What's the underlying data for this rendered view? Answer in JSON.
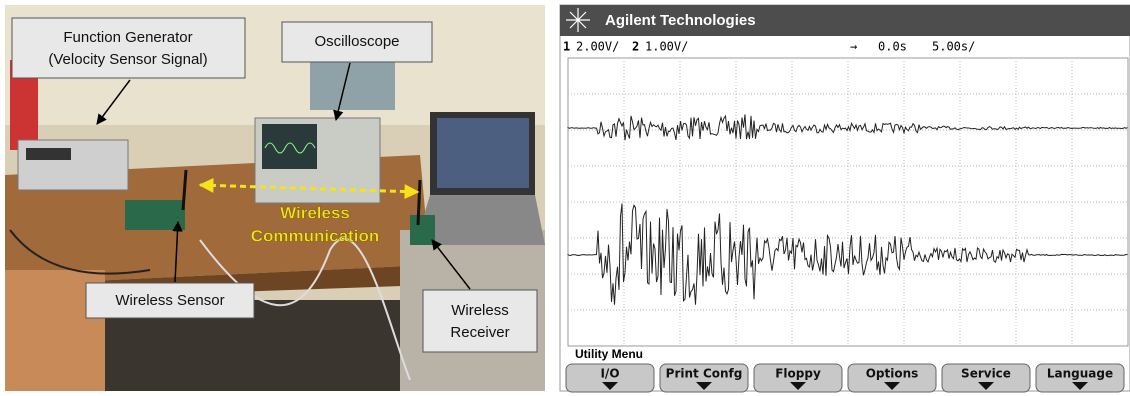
{
  "photo": {
    "labels": [
      {
        "lines": [
          "Function Generator",
          "(Velocity Sensor Signal)"
        ]
      },
      {
        "lines": [
          "Oscilloscope"
        ]
      },
      {
        "lines": [
          "Wireless Sensor"
        ]
      },
      {
        "lines": [
          "Wireless",
          "Receiver"
        ]
      }
    ],
    "link_label": [
      "Wireless",
      "Communication"
    ]
  },
  "scope": {
    "brand": "Agilent Technologies",
    "status": {
      "ch1": "1",
      "ch1_scale": "2.00V/",
      "ch2": "2",
      "ch2_scale": "1.00V/",
      "delay_arrow": "→",
      "delay": "0.0s",
      "timebase": "5.00s/"
    },
    "menu_title": "Utility Menu",
    "softkeys": [
      "I/O",
      "Print Confg",
      "Floppy",
      "Options",
      "Service",
      "Language"
    ]
  }
}
